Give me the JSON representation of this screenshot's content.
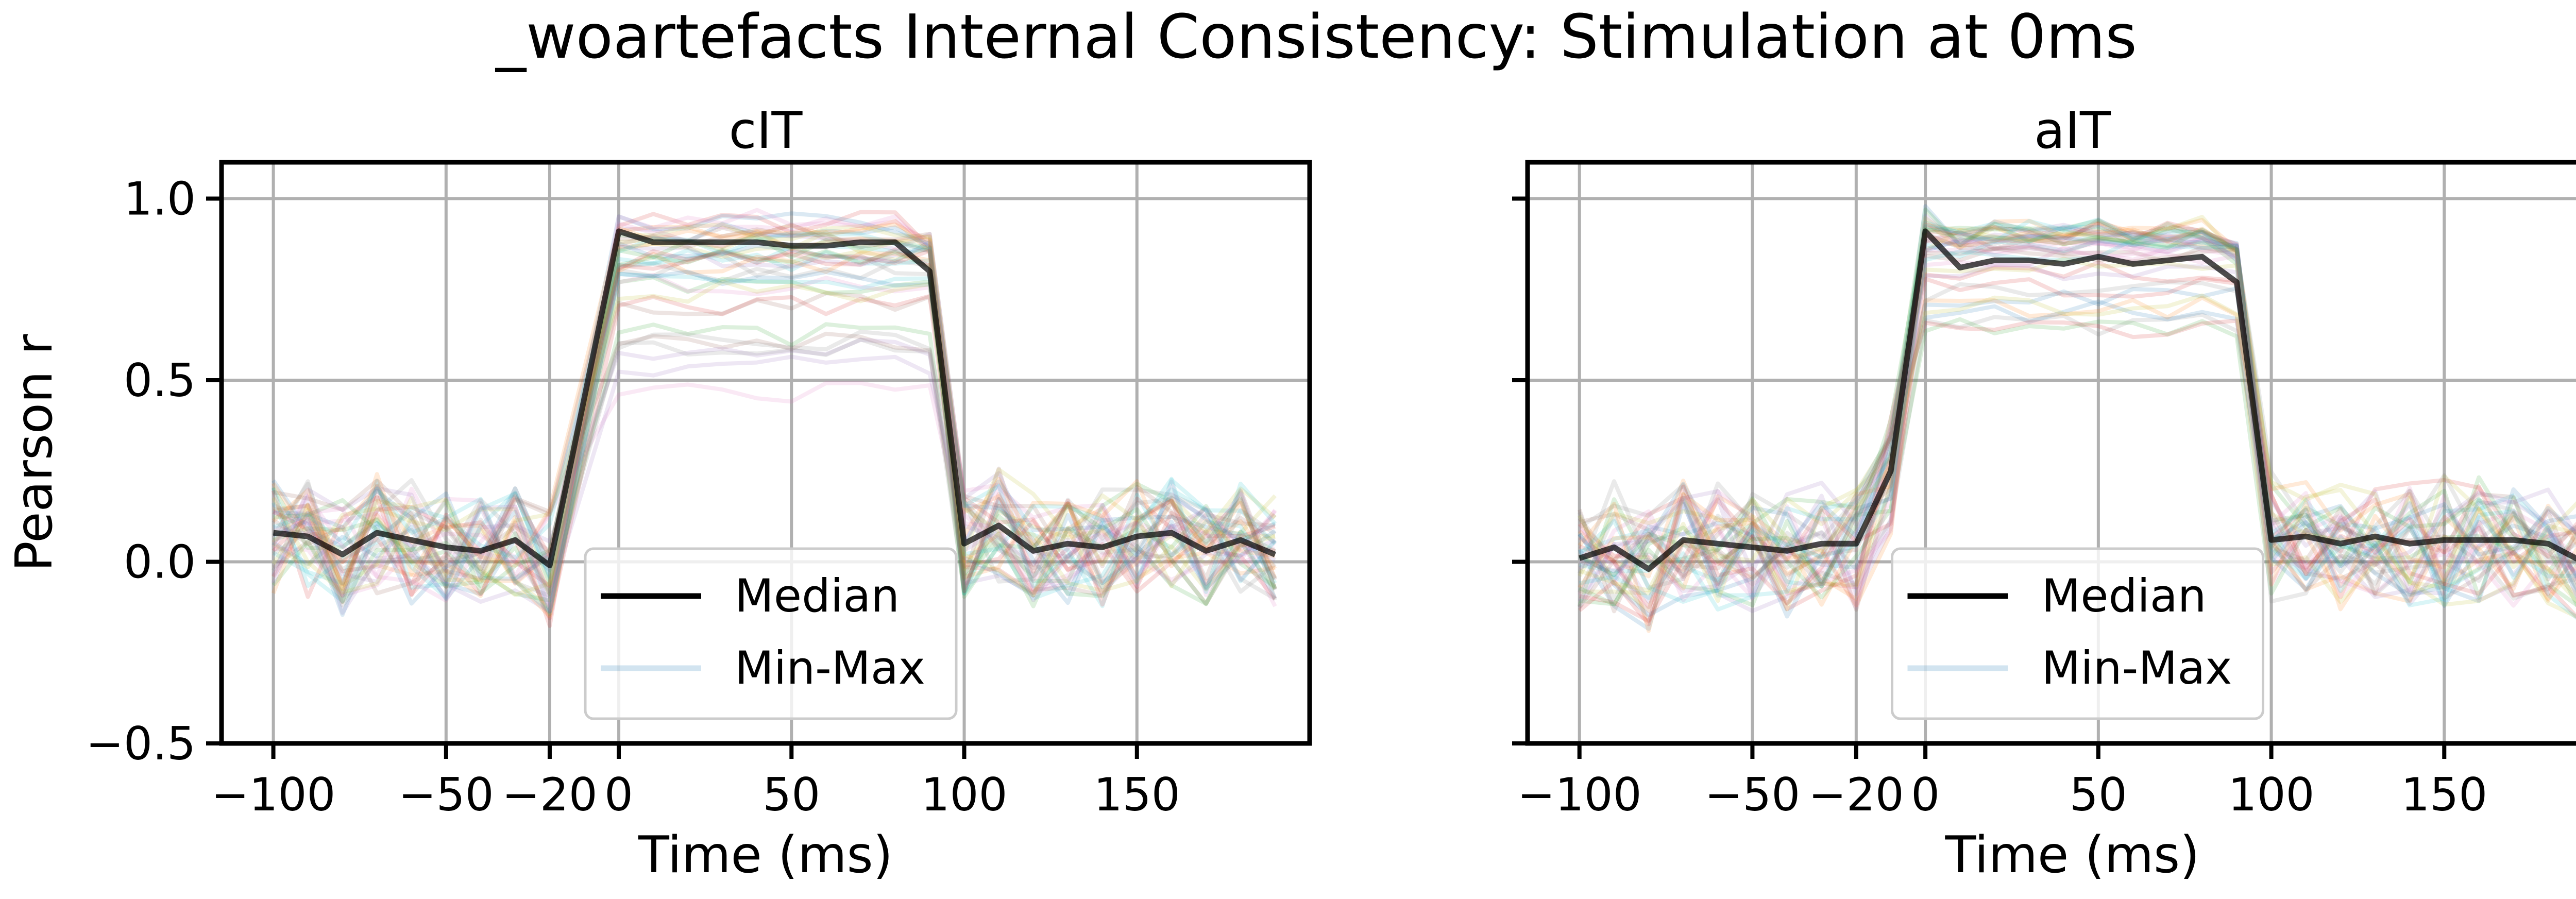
{
  "figure": {
    "title": "_woartefacts Internal Consistency: Stimulation at 0ms"
  },
  "colors": {
    "median": "#000000",
    "grid": "#b0b0b0",
    "trial_palette": [
      "#1f77b4",
      "#ff7f0e",
      "#2ca02c",
      "#d62728",
      "#9467bd",
      "#8c564b",
      "#e377c2",
      "#7f7f7f",
      "#bcbd22",
      "#17becf"
    ]
  },
  "chart_data": [
    {
      "type": "line",
      "title": "cIT",
      "xlabel": "Time (ms)",
      "ylabel": "Pearson r",
      "xlim": [
        -115,
        200
      ],
      "ylim": [
        -0.5,
        1.1
      ],
      "xticks": [
        -100,
        -50,
        -20,
        0,
        50,
        100,
        150
      ],
      "xtick_labels": [
        "−100",
        "−50",
        "−20",
        "0",
        "50",
        "100",
        "150"
      ],
      "yticks": [
        -0.5,
        0.0,
        0.5,
        1.0
      ],
      "ytick_labels": [
        "−0.5",
        "0.0",
        "0.5",
        "1.0"
      ],
      "grid": true,
      "legend": {
        "position": "lower center",
        "entries": [
          "Median",
          "Min-Max"
        ]
      },
      "x": [
        -100,
        -90,
        -80,
        -70,
        -60,
        -50,
        -40,
        -30,
        -20,
        0,
        10,
        20,
        30,
        40,
        50,
        60,
        70,
        80,
        90,
        100,
        110,
        120,
        130,
        140,
        150,
        160,
        170,
        180,
        190
      ],
      "series": [
        {
          "name": "Median",
          "values": [
            0.08,
            0.07,
            0.02,
            0.08,
            0.06,
            0.04,
            0.03,
            0.06,
            -0.01,
            0.91,
            0.88,
            0.88,
            0.88,
            0.88,
            0.87,
            0.87,
            0.88,
            0.88,
            0.8,
            0.05,
            0.1,
            0.03,
            0.05,
            0.04,
            0.07,
            0.08,
            0.03,
            0.06,
            0.02
          ]
        }
      ],
      "min_max_band": {
        "name": "Min-Max",
        "trial_count": 40,
        "baseline_spread": 0.15,
        "plateau_high": 0.95,
        "plateau_low": 0.45
      }
    },
    {
      "type": "line",
      "title": "aIT",
      "xlabel": "Time (ms)",
      "ylabel": "",
      "xlim": [
        -115,
        200
      ],
      "ylim": [
        -0.5,
        1.1
      ],
      "xticks": [
        -100,
        -50,
        -20,
        0,
        50,
        100,
        150
      ],
      "xtick_labels": [
        "−100",
        "−50",
        "−20",
        "0",
        "50",
        "100",
        "150"
      ],
      "yticks": [
        -0.5,
        0.0,
        0.5,
        1.0
      ],
      "ytick_labels": [],
      "grid": true,
      "legend": {
        "position": "lower center",
        "entries": [
          "Median",
          "Min-Max"
        ]
      },
      "x": [
        -100,
        -90,
        -80,
        -70,
        -60,
        -50,
        -40,
        -30,
        -20,
        -10,
        0,
        10,
        20,
        30,
        40,
        50,
        60,
        70,
        80,
        90,
        100,
        110,
        120,
        130,
        140,
        150,
        160,
        170,
        180,
        190
      ],
      "series": [
        {
          "name": "Median",
          "values": [
            0.01,
            0.04,
            -0.02,
            0.06,
            0.05,
            0.04,
            0.03,
            0.05,
            0.05,
            0.25,
            0.91,
            0.81,
            0.83,
            0.83,
            0.82,
            0.84,
            0.82,
            0.83,
            0.84,
            0.77,
            0.06,
            0.07,
            0.05,
            0.07,
            0.05,
            0.06,
            0.06,
            0.06,
            0.05,
            0.0
          ]
        }
      ],
      "min_max_band": {
        "name": "Min-Max",
        "trial_count": 40,
        "baseline_spread": 0.16,
        "plateau_high": 0.96,
        "plateau_low": 0.5
      }
    }
  ]
}
